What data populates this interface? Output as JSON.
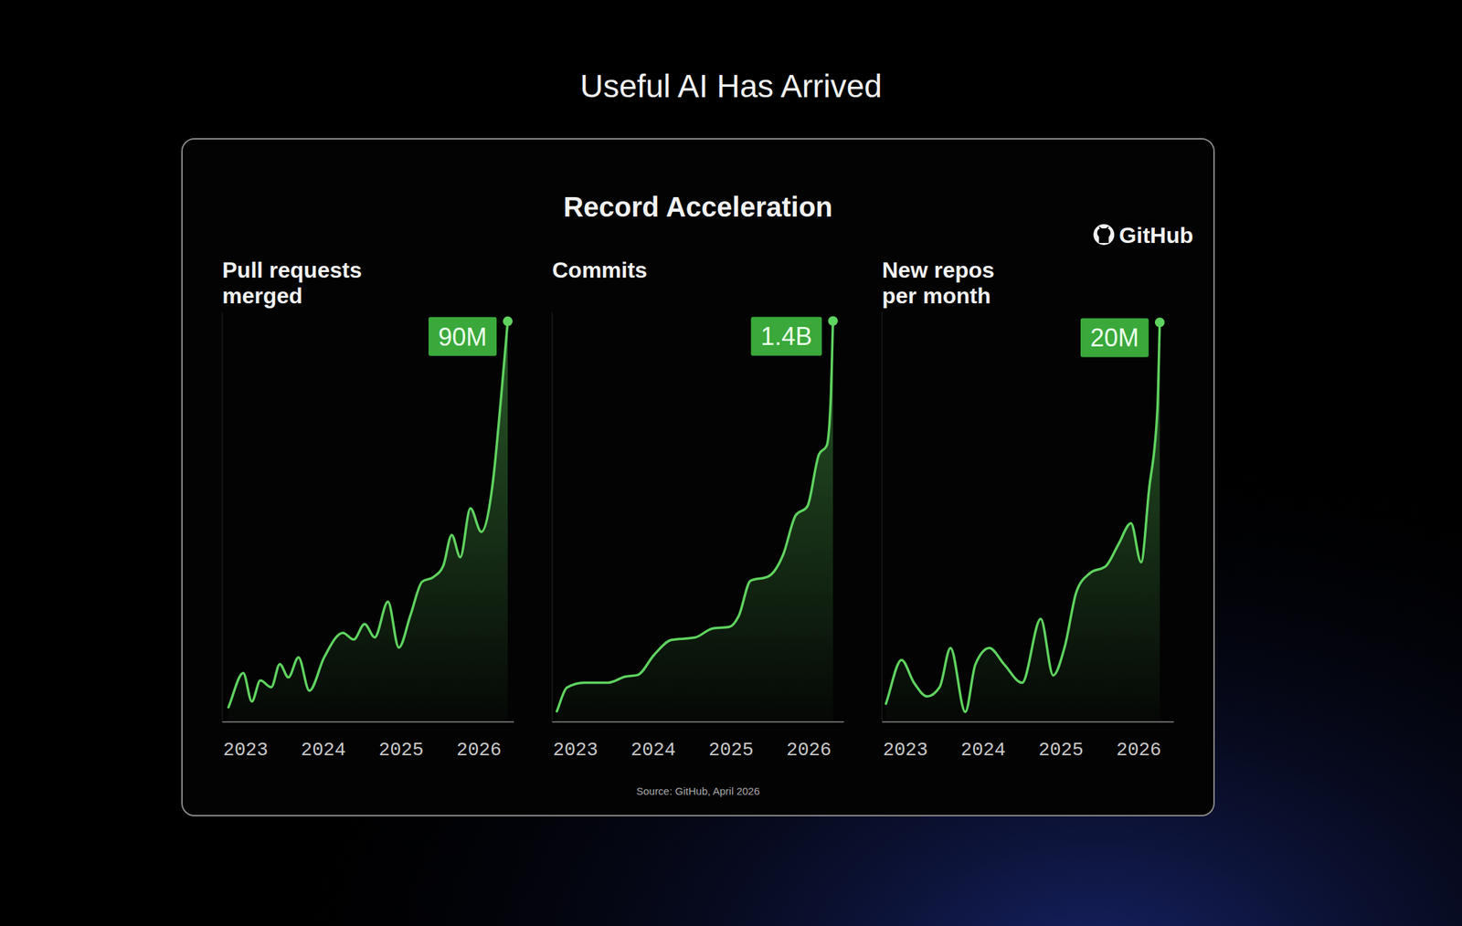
{
  "slide_title": "Useful AI Has Arrived",
  "panel_title": "Record Acceleration",
  "logo": "GitHub",
  "source": "Source: GitHub, April 2026",
  "chart_data": [
    {
      "type": "area",
      "title": "Pull requests merged",
      "color": "#5fd35f",
      "grid": false,
      "tick_labels": "x",
      "x": [
        2022.78,
        2022.97,
        2023.08,
        2023.19,
        2023.33,
        2023.44,
        2023.55,
        2023.68,
        2023.82,
        2024.01,
        2024.25,
        2024.39,
        2024.53,
        2024.66,
        2024.83,
        2024.97,
        2025.12,
        2025.27,
        2025.41,
        2025.54,
        2025.65,
        2025.76,
        2025.89,
        2026.03,
        2026.18,
        2026.28,
        2026.37
      ],
      "values": [
        3300000,
        11000000,
        4600000,
        9300000,
        7800000,
        13000000,
        10000000,
        14500000,
        7000000,
        14500000,
        20000000,
        18500000,
        22000000,
        19000000,
        27000000,
        16700000,
        24000000,
        31500000,
        32500000,
        35000000,
        42000000,
        37000000,
        48000000,
        42700000,
        54000000,
        72000000,
        90000000
      ],
      "value_labels": [
        null,
        null,
        null,
        null,
        null,
        null,
        null,
        null,
        null,
        null,
        null,
        null,
        null,
        null,
        null,
        null,
        null,
        null,
        null,
        null,
        null,
        null,
        null,
        null,
        null,
        null,
        "90M"
      ],
      "xlim": [
        2022.7,
        2026.45
      ],
      "xticks": [
        2023,
        2024,
        2025,
        2026
      ],
      "ylim": [
        0,
        92000000
      ]
    },
    {
      "type": "area",
      "title": "Commits",
      "color": "#5fd35f",
      "grid": false,
      "tick_labels": "x",
      "x": [
        2022.76,
        2022.89,
        2023.11,
        2023.42,
        2023.64,
        2023.8,
        2024.01,
        2024.23,
        2024.54,
        2024.76,
        2024.98,
        2025.1,
        2025.25,
        2025.48,
        2025.67,
        2025.83,
        2025.98,
        2026.13,
        2026.23,
        2026.28,
        2026.31
      ],
      "values": [
        37000000,
        120000000,
        137000000,
        137000000,
        158000000,
        164000000,
        234000000,
        286000000,
        295000000,
        326000000,
        332000000,
        371000000,
        493000000,
        508000000,
        584000000,
        721000000,
        752000000,
        934000000,
        965000000,
        1117000000,
        1400000000
      ],
      "value_labels": [
        null,
        null,
        null,
        null,
        null,
        null,
        null,
        null,
        null,
        null,
        null,
        null,
        null,
        null,
        null,
        null,
        null,
        null,
        null,
        null,
        "1.4B"
      ],
      "xlim": [
        2022.7,
        2026.45
      ],
      "xticks": [
        2023,
        2024,
        2025,
        2026
      ],
      "ylim": [
        0,
        1430000000
      ]
    },
    {
      "type": "area",
      "title": "New repos per month",
      "color": "#5fd35f",
      "grid": false,
      "tick_labels": "x",
      "x": [
        2022.75,
        2022.95,
        2023.11,
        2023.28,
        2023.44,
        2023.58,
        2023.77,
        2023.9,
        2024.08,
        2024.27,
        2024.5,
        2024.74,
        2024.9,
        2025.05,
        2025.2,
        2025.37,
        2025.58,
        2025.74,
        2025.9,
        2026.03,
        2026.13,
        2026.24,
        2026.27
      ],
      "values": [
        910000,
        3100000,
        1960000,
        1280000,
        1740000,
        3700000,
        500000,
        2880000,
        3700000,
        2880000,
        1960000,
        5160000,
        2330000,
        3790000,
        6530000,
        7440000,
        7810000,
        8900000,
        9950000,
        7990000,
        11550000,
        15660000,
        20000000
      ],
      "value_labels": [
        null,
        null,
        null,
        null,
        null,
        null,
        null,
        null,
        null,
        null,
        null,
        null,
        null,
        null,
        null,
        null,
        null,
        null,
        null,
        null,
        null,
        null,
        "20M"
      ],
      "xlim": [
        2022.7,
        2026.45
      ],
      "xticks": [
        2023,
        2024,
        2025,
        2026
      ],
      "ylim": [
        0,
        20500000
      ]
    }
  ]
}
